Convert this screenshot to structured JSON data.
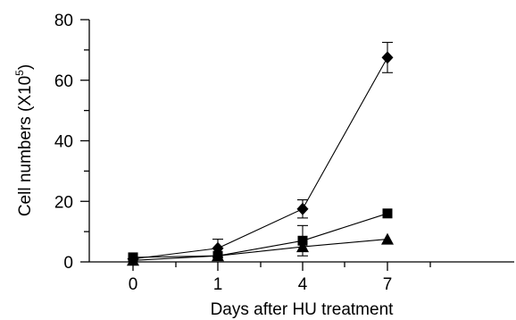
{
  "chart_data": {
    "type": "line",
    "xlabel": "Days after HU treatment",
    "ylabel_main": "Cell numbers (X10",
    "ylabel_sup": "5",
    "ylabel_close": ")",
    "categories": [
      "0",
      "1",
      "4",
      "7"
    ],
    "ylim": [
      0,
      80
    ],
    "yticks": [
      "0",
      "20",
      "40",
      "60",
      "80"
    ],
    "grid": false,
    "series": [
      {
        "marker": "diamond",
        "values": [
          1.0,
          4.5,
          17.5,
          67.5
        ],
        "errors": [
          0,
          3.0,
          3.0,
          5.0
        ]
      },
      {
        "marker": "square",
        "values": [
          1.5,
          2.0,
          7.0,
          16.0
        ],
        "errors": [
          0,
          0,
          5.0,
          0
        ]
      },
      {
        "marker": "triangle",
        "values": [
          0.5,
          2.0,
          5.0,
          7.5
        ],
        "errors": [
          0,
          0,
          0,
          0
        ]
      }
    ]
  }
}
